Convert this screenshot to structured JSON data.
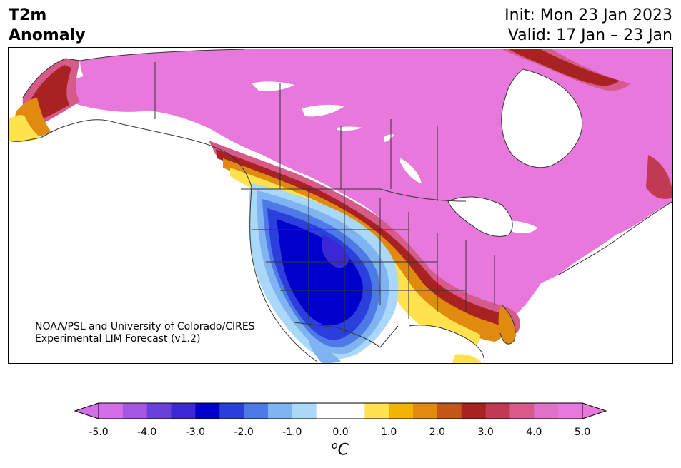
{
  "title": {
    "line1": "T2m",
    "line2": "Anomaly"
  },
  "header": {
    "init": "Init: Mon 23 Jan 2023",
    "valid": "Valid: 17 Jan – 23 Jan"
  },
  "credit": {
    "line1": "NOAA/PSL and University of Colorado/CIRES",
    "line2": "Experimental LIM Forecast (v1.2)"
  },
  "colorbar": {
    "ticks": [
      "-5.0",
      "-4.0",
      "-3.0",
      "-2.0",
      "-1.0",
      "0.0",
      "1.0",
      "2.0",
      "3.0",
      "4.0",
      "5.0"
    ],
    "colors": [
      "#d36fe6",
      "#a457e0",
      "#6b3fdc",
      "#3a27d6",
      "#0000cc",
      "#2a3fdc",
      "#4d7ae6",
      "#7fb3f2",
      "#aad8f8",
      "#ffffff",
      "#ffffff",
      "#ffe24d",
      "#f2b400",
      "#e08a10",
      "#c4561a",
      "#a82222",
      "#c23a52",
      "#d65a8a",
      "#e072c8",
      "#e878dc"
    ],
    "min_arrow_color": "#d36fe6",
    "max_arrow_color": "#e878dc",
    "unit_base": "C",
    "unit_sup": "o"
  },
  "map": {
    "region": "North America",
    "colors": {
      "warm_max": "#e878dc",
      "warm_high": "#d65a8a",
      "warm_mid": "#a82222",
      "warm_low": "#e08a10",
      "warm_min": "#ffe24d",
      "cold_min": "#aad8f8",
      "cold_low": "#4d7ae6",
      "cold_mid": "#2a3fdc",
      "cold_max": "#0000cc",
      "land_border": "#333333"
    }
  }
}
